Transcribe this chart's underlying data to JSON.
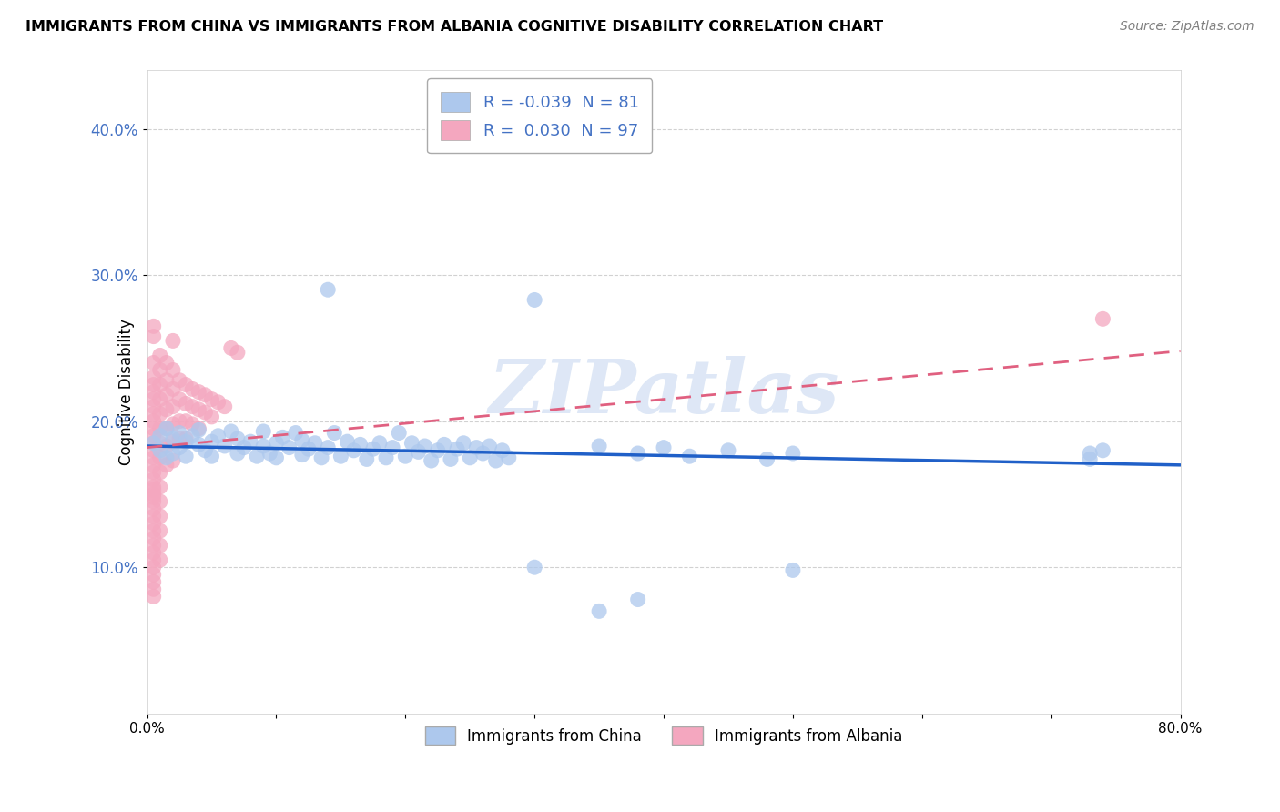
{
  "title": "IMMIGRANTS FROM CHINA VS IMMIGRANTS FROM ALBANIA COGNITIVE DISABILITY CORRELATION CHART",
  "source": "Source: ZipAtlas.com",
  "ylabel": "Cognitive Disability",
  "x_min": 0.0,
  "x_max": 0.8,
  "y_min": 0.0,
  "y_max": 0.44,
  "x_ticks": [
    0.0,
    0.1,
    0.2,
    0.3,
    0.4,
    0.5,
    0.6,
    0.7,
    0.8
  ],
  "x_tick_labels": [
    "0.0%",
    "",
    "",
    "",
    "",
    "",
    "",
    "",
    "80.0%"
  ],
  "y_ticks": [
    0.1,
    0.2,
    0.3,
    0.4
  ],
  "y_tick_labels": [
    "10.0%",
    "20.0%",
    "30.0%",
    "40.0%"
  ],
  "china_color": "#adc8ed",
  "albania_color": "#f4a7bf",
  "china_line_color": "#2060c8",
  "albania_line_color": "#e06080",
  "legend_china_R": "-0.039",
  "legend_china_N": "81",
  "legend_albania_R": "0.030",
  "legend_albania_N": "97",
  "legend_label_china": "Immigrants from China",
  "legend_label_albania": "Immigrants from Albania",
  "watermark": "ZIPatlas",
  "grid_color": "#cccccc",
  "background_color": "#ffffff",
  "china_trend_x": [
    0.0,
    0.8
  ],
  "china_trend_y": [
    0.183,
    0.17
  ],
  "albania_trend_x": [
    0.0,
    0.8
  ],
  "albania_trend_y": [
    0.182,
    0.248
  ],
  "china_scatter": [
    [
      0.005,
      0.185
    ],
    [
      0.01,
      0.19
    ],
    [
      0.01,
      0.18
    ],
    [
      0.015,
      0.195
    ],
    [
      0.015,
      0.175
    ],
    [
      0.02,
      0.188
    ],
    [
      0.02,
      0.178
    ],
    [
      0.025,
      0.192
    ],
    [
      0.025,
      0.182
    ],
    [
      0.03,
      0.186
    ],
    [
      0.03,
      0.176
    ],
    [
      0.035,
      0.19
    ],
    [
      0.04,
      0.184
    ],
    [
      0.04,
      0.194
    ],
    [
      0.045,
      0.18
    ],
    [
      0.05,
      0.186
    ],
    [
      0.05,
      0.176
    ],
    [
      0.055,
      0.19
    ],
    [
      0.06,
      0.183
    ],
    [
      0.065,
      0.193
    ],
    [
      0.07,
      0.178
    ],
    [
      0.07,
      0.188
    ],
    [
      0.075,
      0.182
    ],
    [
      0.08,
      0.186
    ],
    [
      0.085,
      0.176
    ],
    [
      0.09,
      0.183
    ],
    [
      0.09,
      0.193
    ],
    [
      0.095,
      0.178
    ],
    [
      0.1,
      0.185
    ],
    [
      0.1,
      0.175
    ],
    [
      0.105,
      0.189
    ],
    [
      0.11,
      0.182
    ],
    [
      0.115,
      0.192
    ],
    [
      0.12,
      0.177
    ],
    [
      0.12,
      0.187
    ],
    [
      0.125,
      0.181
    ],
    [
      0.13,
      0.185
    ],
    [
      0.135,
      0.175
    ],
    [
      0.14,
      0.182
    ],
    [
      0.145,
      0.192
    ],
    [
      0.15,
      0.176
    ],
    [
      0.155,
      0.186
    ],
    [
      0.16,
      0.18
    ],
    [
      0.165,
      0.184
    ],
    [
      0.17,
      0.174
    ],
    [
      0.175,
      0.181
    ],
    [
      0.18,
      0.185
    ],
    [
      0.185,
      0.175
    ],
    [
      0.19,
      0.182
    ],
    [
      0.195,
      0.192
    ],
    [
      0.2,
      0.176
    ],
    [
      0.205,
      0.185
    ],
    [
      0.21,
      0.179
    ],
    [
      0.215,
      0.183
    ],
    [
      0.22,
      0.173
    ],
    [
      0.225,
      0.18
    ],
    [
      0.23,
      0.184
    ],
    [
      0.235,
      0.174
    ],
    [
      0.24,
      0.181
    ],
    [
      0.245,
      0.185
    ],
    [
      0.25,
      0.175
    ],
    [
      0.255,
      0.182
    ],
    [
      0.26,
      0.178
    ],
    [
      0.265,
      0.183
    ],
    [
      0.27,
      0.173
    ],
    [
      0.275,
      0.18
    ],
    [
      0.28,
      0.175
    ],
    [
      0.3,
      0.283
    ],
    [
      0.14,
      0.29
    ],
    [
      0.35,
      0.183
    ],
    [
      0.38,
      0.178
    ],
    [
      0.4,
      0.182
    ],
    [
      0.42,
      0.176
    ],
    [
      0.45,
      0.18
    ],
    [
      0.48,
      0.174
    ],
    [
      0.5,
      0.178
    ],
    [
      0.5,
      0.098
    ],
    [
      0.38,
      0.078
    ],
    [
      0.3,
      0.1
    ],
    [
      0.35,
      0.07
    ],
    [
      0.73,
      0.178
    ],
    [
      0.74,
      0.18
    ],
    [
      0.73,
      0.174
    ]
  ],
  "albania_scatter": [
    [
      0.005,
      0.24
    ],
    [
      0.005,
      0.23
    ],
    [
      0.005,
      0.225
    ],
    [
      0.005,
      0.22
    ],
    [
      0.005,
      0.215
    ],
    [
      0.005,
      0.21
    ],
    [
      0.005,
      0.205
    ],
    [
      0.005,
      0.2
    ],
    [
      0.005,
      0.195
    ],
    [
      0.005,
      0.19
    ],
    [
      0.005,
      0.185
    ],
    [
      0.005,
      0.18
    ],
    [
      0.005,
      0.175
    ],
    [
      0.005,
      0.17
    ],
    [
      0.005,
      0.165
    ],
    [
      0.005,
      0.16
    ],
    [
      0.005,
      0.155
    ],
    [
      0.005,
      0.15
    ],
    [
      0.005,
      0.145
    ],
    [
      0.005,
      0.14
    ],
    [
      0.005,
      0.135
    ],
    [
      0.005,
      0.13
    ],
    [
      0.005,
      0.125
    ],
    [
      0.005,
      0.12
    ],
    [
      0.005,
      0.115
    ],
    [
      0.005,
      0.11
    ],
    [
      0.005,
      0.105
    ],
    [
      0.005,
      0.1
    ],
    [
      0.005,
      0.095
    ],
    [
      0.005,
      0.09
    ],
    [
      0.005,
      0.085
    ],
    [
      0.005,
      0.08
    ],
    [
      0.01,
      0.245
    ],
    [
      0.01,
      0.235
    ],
    [
      0.01,
      0.225
    ],
    [
      0.01,
      0.215
    ],
    [
      0.01,
      0.205
    ],
    [
      0.01,
      0.195
    ],
    [
      0.01,
      0.185
    ],
    [
      0.01,
      0.175
    ],
    [
      0.01,
      0.165
    ],
    [
      0.01,
      0.155
    ],
    [
      0.01,
      0.145
    ],
    [
      0.01,
      0.135
    ],
    [
      0.01,
      0.125
    ],
    [
      0.01,
      0.115
    ],
    [
      0.01,
      0.105
    ],
    [
      0.015,
      0.24
    ],
    [
      0.015,
      0.228
    ],
    [
      0.015,
      0.218
    ],
    [
      0.015,
      0.208
    ],
    [
      0.015,
      0.195
    ],
    [
      0.015,
      0.183
    ],
    [
      0.015,
      0.17
    ],
    [
      0.02,
      0.235
    ],
    [
      0.02,
      0.222
    ],
    [
      0.02,
      0.21
    ],
    [
      0.02,
      0.198
    ],
    [
      0.02,
      0.186
    ],
    [
      0.02,
      0.173
    ],
    [
      0.025,
      0.228
    ],
    [
      0.025,
      0.215
    ],
    [
      0.025,
      0.2
    ],
    [
      0.025,
      0.188
    ],
    [
      0.03,
      0.225
    ],
    [
      0.03,
      0.212
    ],
    [
      0.03,
      0.2
    ],
    [
      0.03,
      0.188
    ],
    [
      0.035,
      0.222
    ],
    [
      0.035,
      0.21
    ],
    [
      0.035,
      0.198
    ],
    [
      0.04,
      0.22
    ],
    [
      0.04,
      0.208
    ],
    [
      0.04,
      0.195
    ],
    [
      0.045,
      0.218
    ],
    [
      0.045,
      0.206
    ],
    [
      0.05,
      0.215
    ],
    [
      0.05,
      0.203
    ],
    [
      0.055,
      0.213
    ],
    [
      0.06,
      0.21
    ],
    [
      0.065,
      0.25
    ],
    [
      0.07,
      0.247
    ],
    [
      0.005,
      0.258
    ],
    [
      0.005,
      0.265
    ],
    [
      0.02,
      0.255
    ],
    [
      0.74,
      0.27
    ],
    [
      0.005,
      0.153
    ],
    [
      0.005,
      0.148
    ]
  ]
}
